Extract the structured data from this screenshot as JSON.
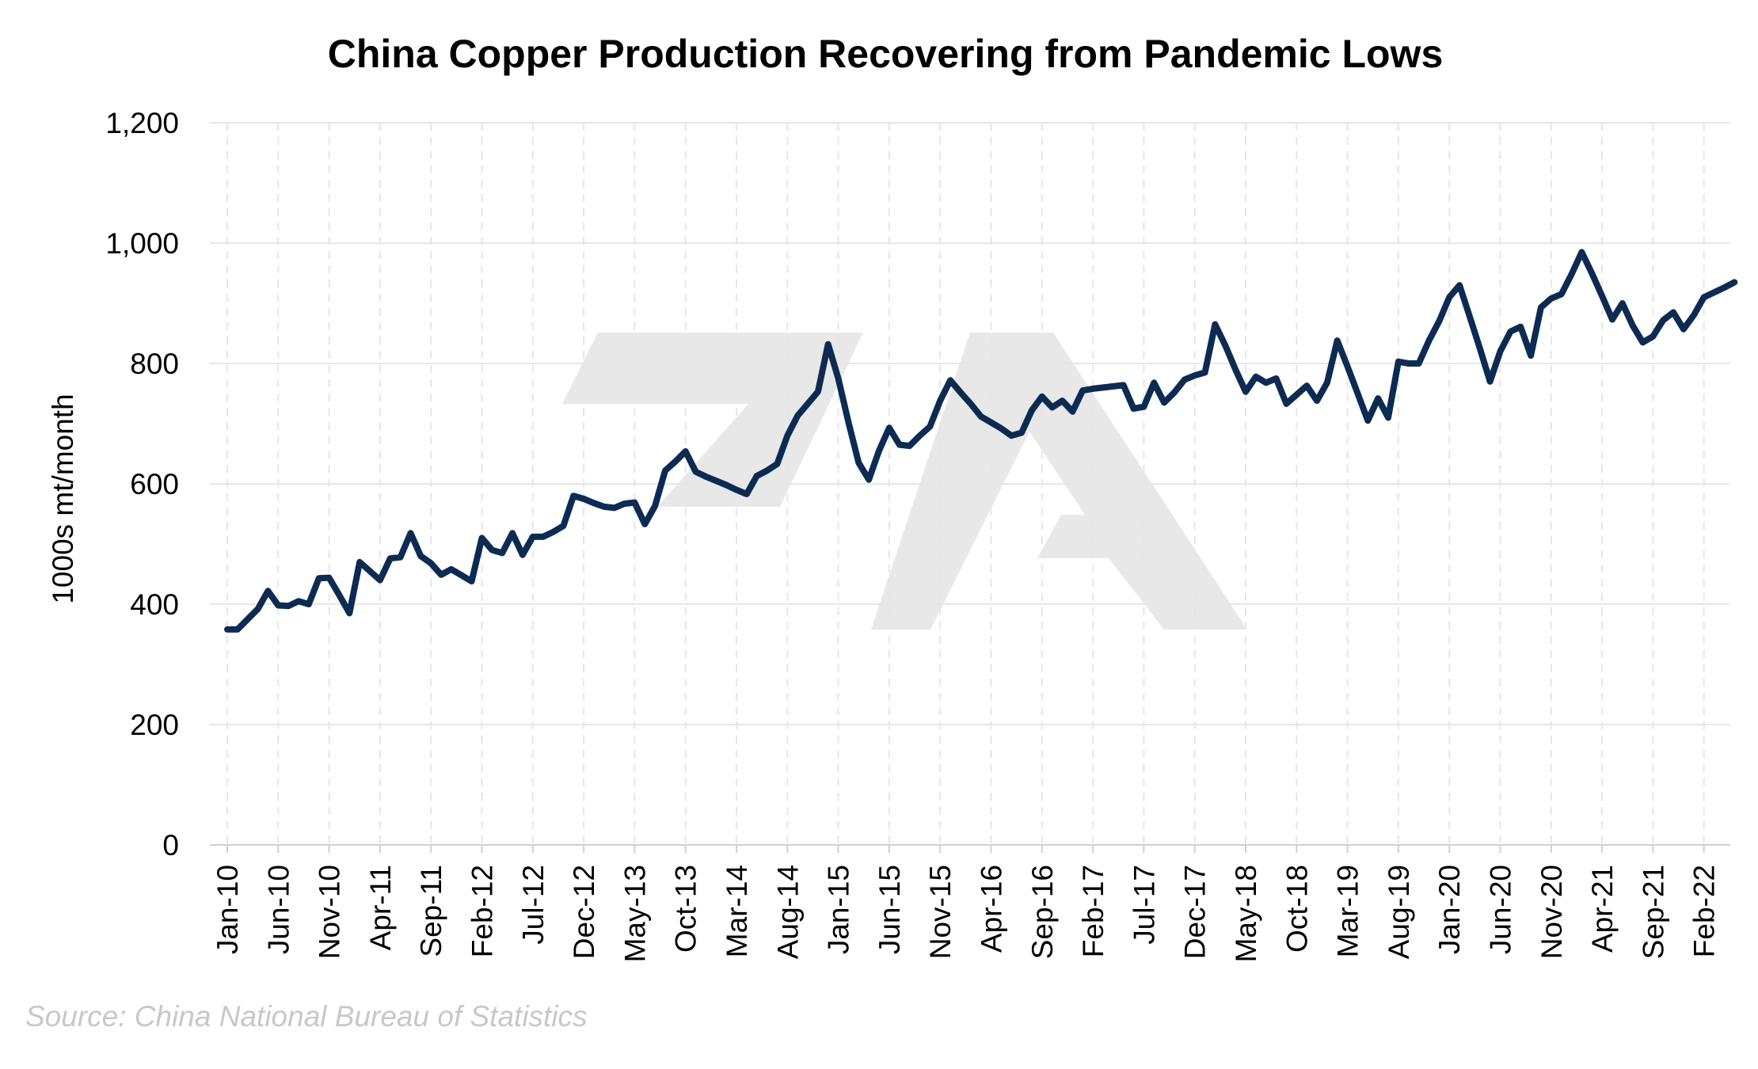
{
  "chart_data": {
    "type": "line",
    "title": "China Copper Production Recovering from Pandemic Lows",
    "ylabel": "1000s mt/month",
    "xlabel": "",
    "source": "Source: China National Bureau of Statistics",
    "ylim": [
      0,
      1200
    ],
    "yticks": [
      0,
      200,
      400,
      600,
      800,
      1000,
      "1,200"
    ],
    "ytick_labels": [
      "0",
      "200",
      "400",
      "600",
      "800",
      "1,000",
      "1,200"
    ],
    "xtick_labels": [
      "Jan-10",
      "Jun-10",
      "Nov-10",
      "Apr-11",
      "Sep-11",
      "Feb-12",
      "Jul-12",
      "Dec-12",
      "May-13",
      "Oct-13",
      "Mar-14",
      "Aug-14",
      "Jan-15",
      "Jun-15",
      "Nov-15",
      "Apr-16",
      "Sep-16",
      "Feb-17",
      "Jul-17",
      "Dec-17",
      "May-18",
      "Oct-18",
      "Mar-19",
      "Aug-19",
      "Jan-20",
      "Jun-20",
      "Nov-20",
      "Apr-21",
      "Sep-21",
      "Feb-22"
    ],
    "grid": true,
    "line_color": "#0d2b52",
    "watermark_color": "#e8e8e8",
    "series": [
      {
        "x_start": "Jan-10",
        "values": [
          358,
          358,
          375,
          392,
          422,
          398,
          397,
          405,
          400,
          443,
          444,
          415,
          385,
          470,
          455,
          440,
          476,
          478,
          518,
          480,
          468,
          449,
          458,
          448,
          438,
          510,
          490,
          485,
          518,
          482,
          512,
          512,
          520,
          530,
          580,
          575,
          568,
          562,
          560,
          567,
          569,
          533,
          563,
          622,
          637,
          654,
          620,
          612,
          605,
          598,
          590,
          583,
          613,
          622,
          633,
          680,
          713,
          733,
          753,
          832,
          775,
          702,
          635,
          607,
          655,
          693,
          665,
          663,
          680,
          695,
          738,
          772,
          752,
          733,
          712,
          702,
          692,
          680,
          685,
          722,
          745,
          727,
          738,
          720,
          755,
          758,
          760,
          762,
          764,
          725,
          728,
          768,
          735,
          752,
          773,
          780,
          785,
          865,
          830,
          790,
          753,
          778,
          768,
          775,
          733,
          748,
          763,
          738,
          768,
          838,
          795,
          750,
          705,
          742,
          710,
          803,
          800,
          800,
          838,
          870,
          910,
          930,
          878,
          825,
          770,
          820,
          853,
          861,
          813,
          893,
          908,
          915,
          948,
          985,
          950,
          912,
          873,
          900,
          863,
          835,
          845,
          872,
          885,
          857,
          880,
          910,
          918,
          926,
          935
        ]
      }
    ]
  }
}
